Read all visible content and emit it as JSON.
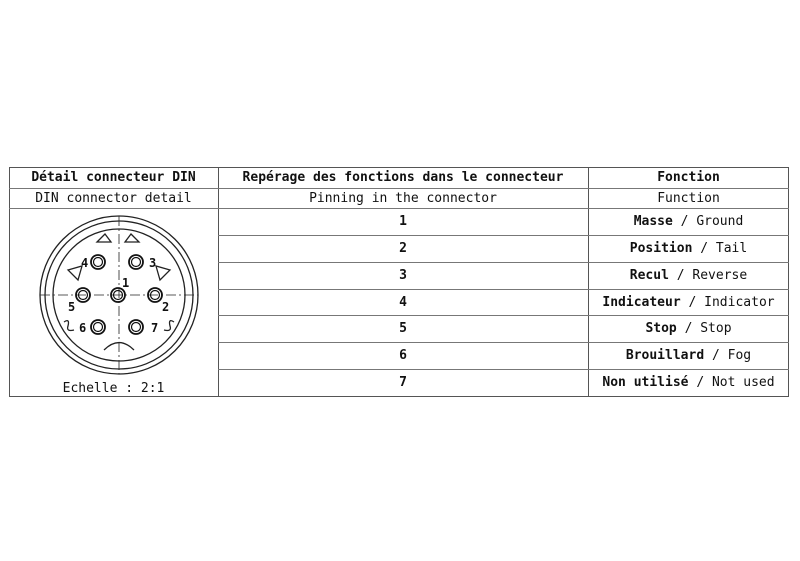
{
  "header": {
    "col1": "Détail connecteur DIN",
    "col2": "Repérage des fonctions dans le connecteur",
    "col3": "Fonction"
  },
  "subheader": {
    "col1": "DIN connector detail",
    "col2": "Pinning in the connector",
    "col3": "Function"
  },
  "rows": [
    {
      "pin": "1",
      "fr": "Masse",
      "en": "Ground"
    },
    {
      "pin": "2",
      "fr": "Position",
      "en": "Tail"
    },
    {
      "pin": "3",
      "fr": "Recul",
      "en": "Reverse"
    },
    {
      "pin": "4",
      "fr": "Indicateur",
      "en": "Indicator"
    },
    {
      "pin": "5",
      "fr": "Stop",
      "en": "Stop"
    },
    {
      "pin": "6",
      "fr": "Brouillard",
      "en": "Fog"
    },
    {
      "pin": "7",
      "fr": "Non utilisé",
      "en": "Not used"
    }
  ],
  "separator": "/",
  "diagram": {
    "scale": "Echelle :  2:1",
    "pin_labels": [
      "1",
      "2",
      "3",
      "4",
      "5",
      "6",
      "7"
    ]
  }
}
